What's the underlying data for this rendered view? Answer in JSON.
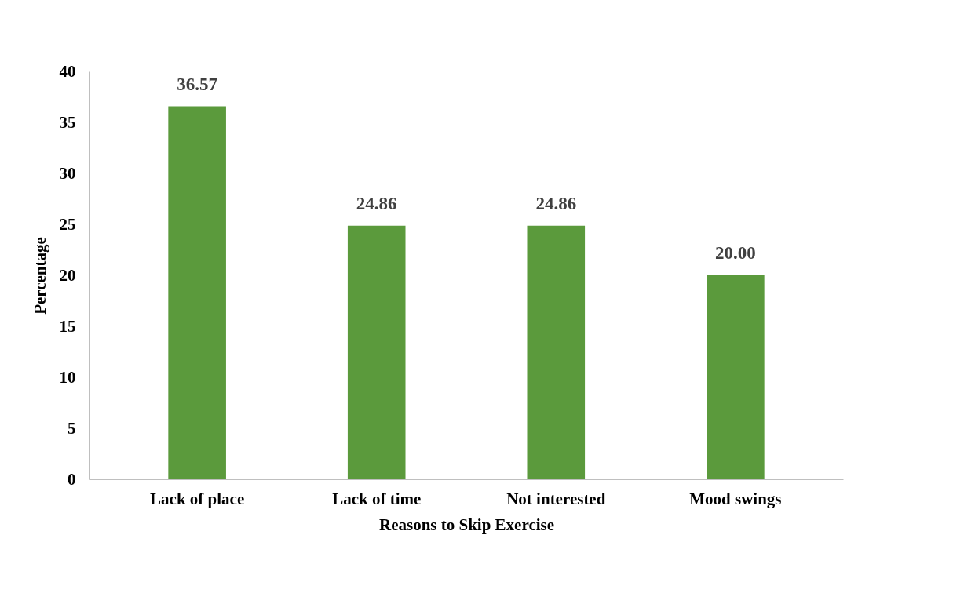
{
  "chart_data": {
    "type": "bar",
    "xlabel": "Reasons to Skip Exercise",
    "ylabel": "Percentage",
    "categories": [
      "Lack of place",
      "Lack of time",
      "Not interested",
      "Mood swings"
    ],
    "values": [
      36.57,
      24.86,
      24.86,
      20.0
    ],
    "value_labels": [
      "36.57",
      "24.86",
      "24.86",
      "20.00"
    ],
    "color": "#5b9a3c",
    "ylim": [
      0,
      40
    ],
    "yticks": [
      0,
      5,
      10,
      15,
      20,
      25,
      30,
      35,
      40
    ]
  }
}
